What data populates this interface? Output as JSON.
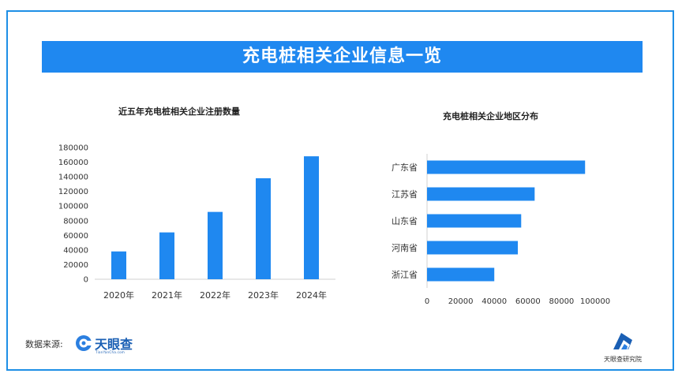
{
  "banner": {
    "title": "充电桩相关企业信息一览"
  },
  "chart_data": [
    {
      "type": "bar",
      "title": "近五年充电桩相关企业注册数量",
      "categories": [
        "2020年",
        "2021年",
        "2022年",
        "2023年",
        "2024年"
      ],
      "values": [
        38000,
        64000,
        92000,
        138000,
        168000
      ],
      "y_ticks": [
        "180000",
        "160000",
        "140000",
        "120000",
        "100000",
        "80000",
        "60000",
        "40000",
        "20000",
        "0"
      ],
      "ylim": [
        0,
        180000
      ],
      "color": "#1f88f0",
      "grid": false
    },
    {
      "type": "bar",
      "orientation": "horizontal",
      "title": "充电桩相关企业地区分布",
      "categories": [
        "广东省",
        "江苏省",
        "山东省",
        "河南省",
        "浙江省"
      ],
      "values": [
        94000,
        64000,
        56000,
        54000,
        40000
      ],
      "x_ticks": [
        "0",
        "20000",
        "40000",
        "60000",
        "80000",
        "100000"
      ],
      "xlim": [
        0,
        100000
      ],
      "color": "#1f88f0",
      "grid": false
    }
  ],
  "footer": {
    "source_label": "数据来源:",
    "brand_name": "天眼查",
    "brand_sub": "TianYanCha.com",
    "institute": "天眼查研究院"
  }
}
